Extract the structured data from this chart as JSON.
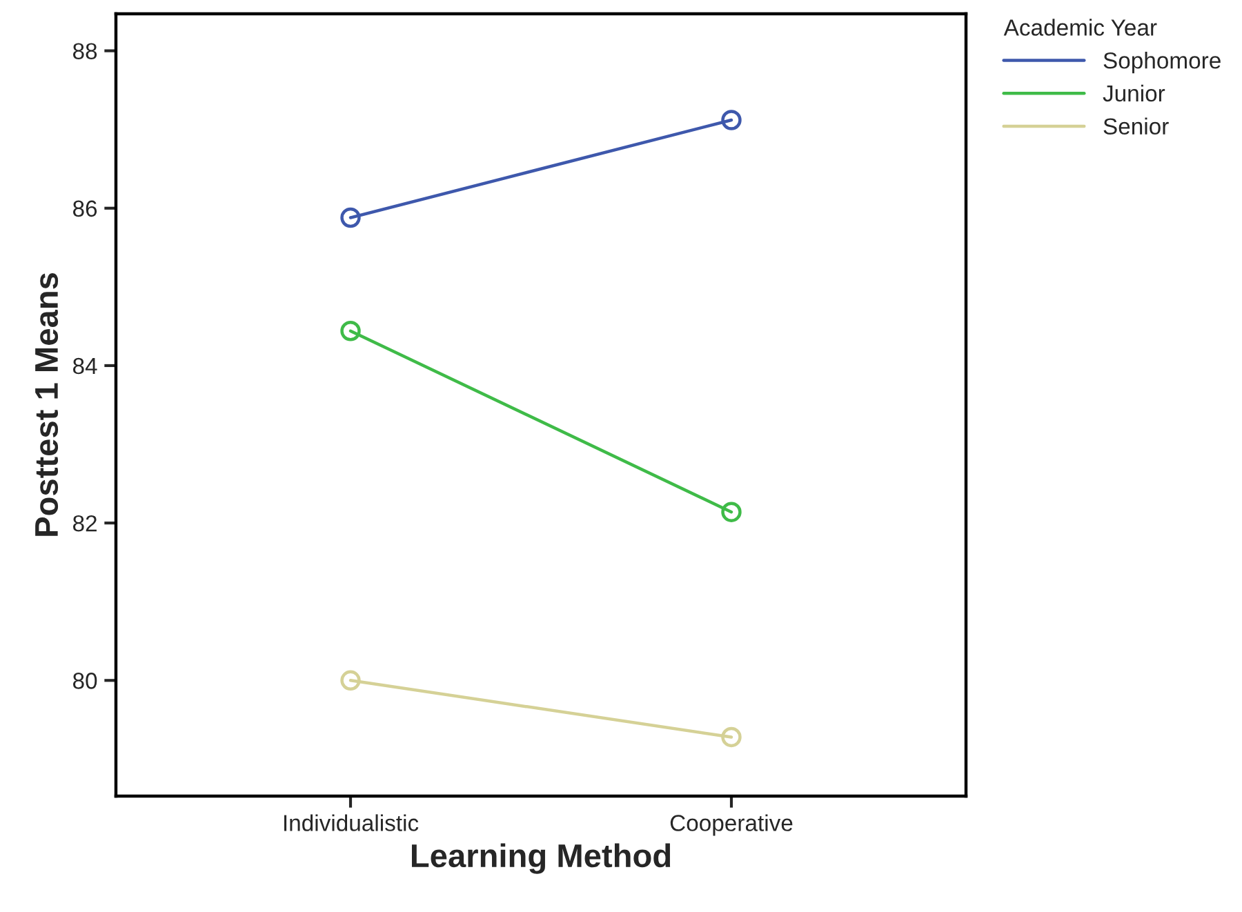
{
  "chart_data": {
    "type": "line",
    "xlabel": "Learning Method",
    "ylabel": "Posttest 1 Means",
    "legend_title": "Academic Year",
    "categories": [
      "Individualistic",
      "Cooperative"
    ],
    "series": [
      {
        "name": "Sophomore",
        "color": "#3e58ac",
        "values": [
          85.88,
          87.12
        ]
      },
      {
        "name": "Junior",
        "color": "#3fbb48",
        "values": [
          84.44,
          82.14
        ]
      },
      {
        "name": "Senior",
        "color": "#d5d196",
        "values": [
          80.0,
          79.28
        ]
      }
    ],
    "ylim": [
      78.53,
      88.47
    ],
    "yticks": [
      80,
      82,
      84,
      86,
      88
    ],
    "grid": false,
    "legend": "top right",
    "marker": "circle",
    "line_style": "solid"
  }
}
